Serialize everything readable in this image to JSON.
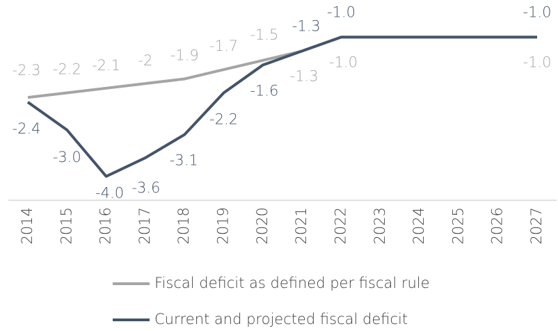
{
  "chart_data": {
    "type": "line",
    "categories": [
      "2014",
      "2015",
      "2016",
      "2017",
      "2018",
      "2019",
      "2020",
      "2021",
      "2022",
      "2023",
      "2024",
      "2025",
      "2026",
      "2027"
    ],
    "series": [
      {
        "name": "Fiscal deficit as defined per fiscal rule",
        "color": "#a5a5a5",
        "values": [
          -2.3,
          -2.2,
          -2.1,
          -2,
          -1.9,
          -1.7,
          -1.5,
          -1.3,
          -1.0,
          -1.0,
          -1.0,
          -1.0,
          -1.0,
          -1.0
        ],
        "value_labels": [
          "-2.3",
          "-2.2",
          "-2.1",
          "-2",
          "-1.9",
          "-1.7",
          "-1.5",
          "-1.3",
          "-1.0",
          null,
          null,
          null,
          null,
          "-1.0"
        ]
      },
      {
        "name": "Current and projected fiscal deficit",
        "color": "#44546a",
        "values": [
          -2.4,
          -3.0,
          -4.0,
          -3.6,
          -3.1,
          -2.2,
          -1.6,
          -1.3,
          -1.0,
          -1.0,
          -1.0,
          -1.0,
          -1.0,
          -1.0
        ],
        "value_labels": [
          "-2.4",
          "-3.0",
          "-4.0",
          "-3.6",
          "-3.1",
          "-2.2",
          "-1.6",
          "-1.3",
          "-1.0",
          null,
          null,
          null,
          null,
          "-1.0"
        ]
      }
    ],
    "ylim": [
      -4.5,
      -0.2
    ],
    "legend": "bottom"
  }
}
